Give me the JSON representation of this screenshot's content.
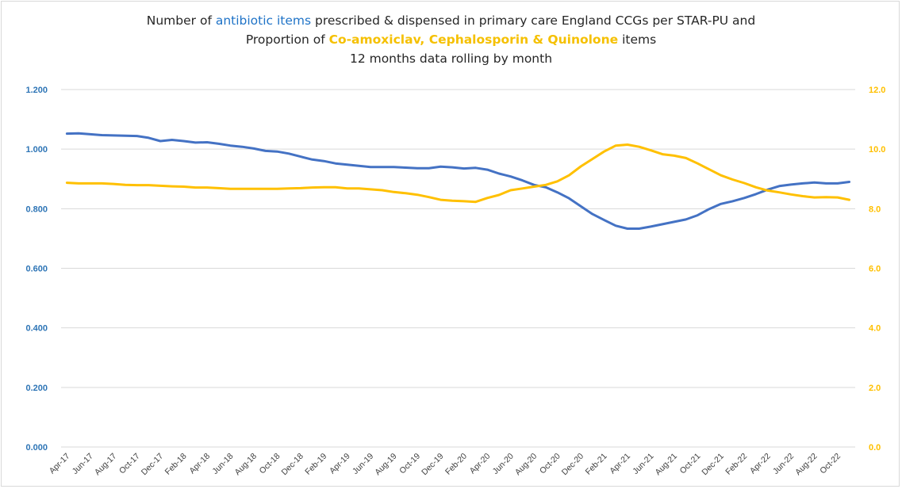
{
  "title": {
    "line1_pre": "Number of ",
    "line1_highlight": "antibiotic items",
    "line1_post": " prescribed & dispensed in primary care England CCGs per STAR-PU and",
    "line2_pre": "Proportion of ",
    "line2_highlight": "Co-amoxiclav, Cephalosporin & Quinolone",
    "line2_post": " items",
    "line3": "12 months data rolling by month"
  },
  "colors": {
    "primary_series": "#4472c4",
    "secondary_series": "#ffc000",
    "left_axis_text": "#2e75b6",
    "right_axis_text": "#ffc000",
    "grid": "#d9d9d9"
  },
  "chart_data": {
    "type": "line",
    "x": [
      "Apr-17",
      "May-17",
      "Jun-17",
      "Jul-17",
      "Aug-17",
      "Sep-17",
      "Oct-17",
      "Nov-17",
      "Dec-17",
      "Jan-18",
      "Feb-18",
      "Mar-18",
      "Apr-18",
      "May-18",
      "Jun-18",
      "Jul-18",
      "Aug-18",
      "Sep-18",
      "Oct-18",
      "Nov-18",
      "Dec-18",
      "Jan-19",
      "Feb-19",
      "Mar-19",
      "Apr-19",
      "May-19",
      "Jun-19",
      "Jul-19",
      "Aug-19",
      "Sep-19",
      "Oct-19",
      "Nov-19",
      "Dec-19",
      "Jan-20",
      "Feb-20",
      "Mar-20",
      "Apr-20",
      "May-20",
      "Jun-20",
      "Jul-20",
      "Aug-20",
      "Sep-20",
      "Oct-20",
      "Nov-20",
      "Dec-20",
      "Jan-21",
      "Feb-21",
      "Mar-21",
      "Apr-21",
      "May-21",
      "Jun-21",
      "Jul-21",
      "Aug-21",
      "Sep-21",
      "Oct-21",
      "Nov-21",
      "Dec-21",
      "Jan-22",
      "Feb-22",
      "Mar-22",
      "Apr-22",
      "May-22",
      "Jun-22",
      "Jul-22",
      "Aug-22",
      "Sep-22",
      "Oct-22",
      "Nov-22"
    ],
    "x_tick_labels": [
      "Apr-17",
      "Jun-17",
      "Aug-17",
      "Oct-17",
      "Dec-17",
      "Feb-18",
      "Apr-18",
      "Jun-18",
      "Aug-18",
      "Oct-18",
      "Dec-18",
      "Feb-19",
      "Apr-19",
      "Jun-19",
      "Aug-19",
      "Oct-19",
      "Dec-19",
      "Feb-20",
      "Apr-20",
      "Jun-20",
      "Aug-20",
      "Oct-20",
      "Dec-20",
      "Feb-21",
      "Apr-21",
      "Jun-21",
      "Aug-21",
      "Oct-21",
      "Dec-21",
      "Feb-22",
      "Apr-22",
      "Jun-22",
      "Aug-22",
      "Oct-22"
    ],
    "series": [
      {
        "axis": "left",
        "values": [
          1.052,
          1.053,
          1.05,
          1.047,
          1.046,
          1.045,
          1.044,
          1.038,
          1.027,
          1.031,
          1.027,
          1.022,
          1.023,
          1.018,
          1.012,
          1.008,
          1.002,
          0.994,
          0.992,
          0.985,
          0.975,
          0.965,
          0.96,
          0.952,
          0.948,
          0.944,
          0.94,
          0.94,
          0.94,
          0.938,
          0.936,
          0.936,
          0.941,
          0.939,
          0.935,
          0.937,
          0.931,
          0.918,
          0.908,
          0.895,
          0.88,
          0.872,
          0.855,
          0.835,
          0.808,
          0.782,
          0.762,
          0.743,
          0.733,
          0.733,
          0.74,
          0.748,
          0.756,
          0.764,
          0.778,
          0.799,
          0.816,
          0.825,
          0.836,
          0.849,
          0.864,
          0.876,
          0.881,
          0.885,
          0.888,
          0.885,
          0.885,
          0.89
        ]
      },
      {
        "axis": "right",
        "values": [
          8.87,
          8.85,
          8.85,
          8.85,
          8.83,
          8.8,
          8.79,
          8.79,
          8.77,
          8.75,
          8.74,
          8.71,
          8.71,
          8.69,
          8.67,
          8.67,
          8.67,
          8.67,
          8.67,
          8.68,
          8.69,
          8.71,
          8.72,
          8.72,
          8.68,
          8.68,
          8.65,
          8.62,
          8.56,
          8.52,
          8.47,
          8.39,
          8.3,
          8.27,
          8.25,
          8.23,
          8.36,
          8.46,
          8.62,
          8.68,
          8.74,
          8.8,
          8.92,
          9.12,
          9.42,
          9.67,
          9.92,
          10.12,
          10.15,
          10.08,
          9.96,
          9.83,
          9.78,
          9.7,
          9.52,
          9.32,
          9.12,
          8.98,
          8.86,
          8.72,
          8.61,
          8.55,
          8.48,
          8.42,
          8.38,
          8.39,
          8.38,
          8.3
        ]
      }
    ],
    "y_left": {
      "min": 0,
      "max": 1.2,
      "ticks": [
        "0.000",
        "0.200",
        "0.400",
        "0.600",
        "0.800",
        "1.000",
        "1.200"
      ]
    },
    "y_right": {
      "min": 0,
      "max": 12,
      "ticks": [
        "0.0",
        "2.0",
        "4.0",
        "6.0",
        "8.0",
        "10.0",
        "12.0"
      ]
    },
    "grid": true,
    "legend": "none"
  }
}
